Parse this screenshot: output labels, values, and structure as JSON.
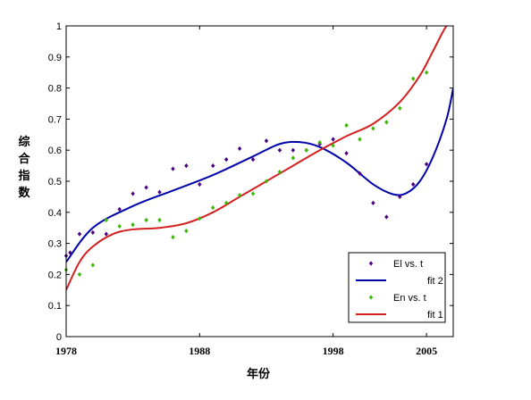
{
  "chart_data": {
    "type": "scatter",
    "title": "",
    "xlabel": "年份",
    "ylabel": "综合指数",
    "xlim": [
      1978,
      2007
    ],
    "ylim": [
      0,
      1
    ],
    "x_ticks": [
      1978,
      1988,
      1998,
      2005
    ],
    "y_ticks": [
      0,
      0.1,
      0.2,
      0.3,
      0.4,
      0.5,
      0.6,
      0.7,
      0.8,
      0.9,
      1
    ],
    "grid": false,
    "legend_position": "bottom-right",
    "series": [
      {
        "name": "El vs. t",
        "kind": "points",
        "color": "#4b0082",
        "points": [
          [
            1978,
            0.26
          ],
          [
            1978.3,
            0.27
          ],
          [
            1979,
            0.33
          ],
          [
            1980,
            0.335
          ],
          [
            1981,
            0.33
          ],
          [
            1982,
            0.41
          ],
          [
            1983,
            0.46
          ],
          [
            1984,
            0.48
          ],
          [
            1985,
            0.465
          ],
          [
            1986,
            0.54
          ],
          [
            1987,
            0.55
          ],
          [
            1988,
            0.49
          ],
          [
            1989,
            0.55
          ],
          [
            1990,
            0.57
          ],
          [
            1991,
            0.605
          ],
          [
            1992,
            0.57
          ],
          [
            1993,
            0.63
          ],
          [
            1994,
            0.6
          ],
          [
            1995,
            0.6
          ],
          [
            1996,
            0.6
          ],
          [
            1997,
            0.62
          ],
          [
            1998,
            0.635
          ],
          [
            1999,
            0.59
          ],
          [
            2000,
            0.525
          ],
          [
            2001,
            0.43
          ],
          [
            2002,
            0.385
          ],
          [
            2003,
            0.45
          ],
          [
            2004,
            0.49
          ],
          [
            2005,
            0.555
          ]
        ]
      },
      {
        "name": "fit 2",
        "kind": "line",
        "color": "#0000a8",
        "x": [
          1978,
          1980,
          1983,
          1986,
          1989,
          1992,
          1994,
          1995.5,
          1997,
          1999,
          2001,
          2002.5,
          2003.5,
          2004.5,
          2005.5,
          2006.5,
          2007
        ],
        "y": [
          0.24,
          0.35,
          0.42,
          0.47,
          0.52,
          0.58,
          0.62,
          0.626,
          0.61,
          0.56,
          0.49,
          0.458,
          0.462,
          0.5,
          0.58,
          0.7,
          0.8
        ]
      },
      {
        "name": "En vs. t",
        "kind": "points",
        "color": "#3cb800",
        "points": [
          [
            1978,
            0.215
          ],
          [
            1979,
            0.2
          ],
          [
            1980,
            0.23
          ],
          [
            1981,
            0.375
          ],
          [
            1982,
            0.355
          ],
          [
            1983,
            0.36
          ],
          [
            1984,
            0.375
          ],
          [
            1985,
            0.375
          ],
          [
            1986,
            0.32
          ],
          [
            1987,
            0.34
          ],
          [
            1988,
            0.38
          ],
          [
            1989,
            0.415
          ],
          [
            1990,
            0.43
          ],
          [
            1991,
            0.455
          ],
          [
            1992,
            0.46
          ],
          [
            1993,
            0.5
          ],
          [
            1994,
            0.53
          ],
          [
            1995,
            0.575
          ],
          [
            1996,
            0.6
          ],
          [
            1997,
            0.625
          ],
          [
            1998,
            0.615
          ],
          [
            1999,
            0.68
          ],
          [
            2000,
            0.635
          ],
          [
            2001,
            0.67
          ],
          [
            2002,
            0.69
          ],
          [
            2003,
            0.735
          ],
          [
            2004,
            0.83
          ],
          [
            2005,
            0.85
          ]
        ]
      },
      {
        "name": "fit 1",
        "kind": "line",
        "color": "#d42020",
        "x": [
          1978,
          1979,
          1980,
          1981.5,
          1983,
          1985,
          1987,
          1989,
          1991,
          1993,
          1995,
          1997,
          1999,
          2001,
          2003,
          2004.5,
          2005.5,
          2006.5,
          2007
        ],
        "y": [
          0.15,
          0.24,
          0.29,
          0.33,
          0.345,
          0.35,
          0.365,
          0.4,
          0.45,
          0.5,
          0.55,
          0.6,
          0.645,
          0.685,
          0.755,
          0.84,
          0.92,
          1.0,
          1.0
        ]
      }
    ]
  }
}
